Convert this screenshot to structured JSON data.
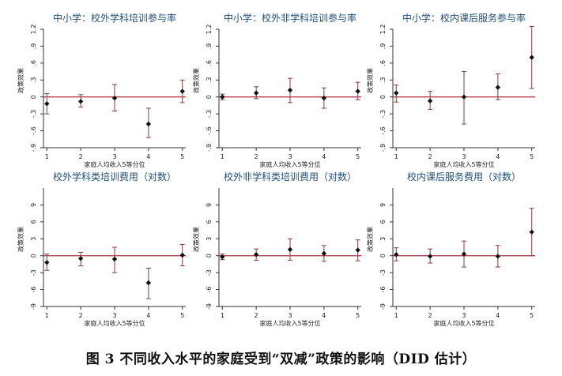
{
  "figure": {
    "caption": "图 3 不同收入水平的家庭受到“双减”政策的影响（DID 估计）"
  },
  "colors": {
    "zero_line": "#a8323e",
    "error_bar": "#8a3a3a",
    "point": "#111111",
    "title": "#1f4e79",
    "axis": "#333333"
  },
  "chart_data": [
    {
      "type": "scatter",
      "title": "中小学：校外学科培训参与率",
      "ylabel": "政策效果",
      "xlabel": "家庭人均收入5等分位",
      "x": [
        1,
        2,
        3,
        4,
        5
      ],
      "ylim": [
        -0.9,
        1.2
      ],
      "yticks": [
        1.2,
        0.9,
        0.6,
        0.3,
        0,
        -0.3,
        -0.6,
        -0.9
      ],
      "ytick_labels": [
        "1.2",
        ".9",
        ".6",
        ".3",
        "0",
        "-.3",
        "-.6",
        "-.9"
      ],
      "estimate": [
        -0.12,
        -0.08,
        -0.02,
        -0.48,
        0.1
      ],
      "ci_low": [
        -0.3,
        -0.18,
        -0.25,
        -0.72,
        -0.1
      ],
      "ci_high": [
        0.06,
        0.04,
        0.22,
        -0.2,
        0.3
      ]
    },
    {
      "type": "scatter",
      "title": "中小学：校外非学科培训参与率",
      "ylabel": "政策效果",
      "xlabel": "家庭人均收入5等分位",
      "x": [
        1,
        2,
        3,
        4,
        5
      ],
      "ylim": [
        -0.9,
        1.2
      ],
      "yticks": [
        1.2,
        0.9,
        0.6,
        0.3,
        0,
        -0.3,
        -0.6,
        -0.9
      ],
      "ytick_labels": [
        "1.2",
        ".9",
        ".6",
        ".3",
        "0",
        "-.3",
        "-.6",
        "-.9"
      ],
      "estimate": [
        0,
        0.07,
        0.12,
        -0.02,
        0.1
      ],
      "ci_low": [
        -0.05,
        -0.03,
        -0.1,
        -0.2,
        -0.05
      ],
      "ci_high": [
        0.05,
        0.18,
        0.33,
        0.16,
        0.26
      ]
    },
    {
      "type": "scatter",
      "title": "中小学：校内课后服务参与率",
      "ylabel": "政策效果",
      "xlabel": "家庭人均收入5等分位",
      "x": [
        1,
        2,
        3,
        4,
        5
      ],
      "ylim": [
        -0.9,
        1.2
      ],
      "yticks": [
        1.2,
        0.9,
        0.6,
        0.3,
        0,
        -0.3,
        -0.6,
        -0.9
      ],
      "ytick_labels": [
        "1.2",
        ".9",
        ".6",
        ".3",
        "0",
        "-.3",
        "-.6",
        "-.9"
      ],
      "estimate": [
        0.07,
        -0.07,
        0,
        0.17,
        0.7
      ],
      "ci_low": [
        -0.09,
        -0.22,
        -0.48,
        -0.05,
        0.15
      ],
      "ci_high": [
        0.21,
        0.1,
        0.45,
        0.41,
        1.25
      ]
    },
    {
      "type": "scatter",
      "title": "校外学科类培训费用（对数）",
      "ylabel": "政策效果",
      "xlabel": "家庭人均收入5等分位",
      "x": [
        1,
        2,
        3,
        4,
        5
      ],
      "ylim": [
        -9,
        12
      ],
      "yticks": [
        9,
        6,
        3,
        0,
        -3,
        -6,
        -9
      ],
      "ytick_labels": [
        "9",
        "6",
        "3",
        "0",
        "-3",
        "-6",
        "-9"
      ],
      "estimate": [
        -1.2,
        -0.5,
        -0.6,
        -4.8,
        0.1
      ],
      "ci_low": [
        -2.6,
        -1.8,
        -3.0,
        -7.6,
        -1.8
      ],
      "ci_high": [
        0.3,
        0.6,
        1.5,
        -2.2,
        2.0
      ]
    },
    {
      "type": "scatter",
      "title": "校外非学科类培训费用（对数）",
      "ylabel": "政策效果",
      "xlabel": "家庭人均收入5等分位",
      "x": [
        1,
        2,
        3,
        4,
        5
      ],
      "ylim": [
        -9,
        12
      ],
      "yticks": [
        9,
        6,
        3,
        0,
        -3,
        -6,
        -9
      ],
      "ytick_labels": [
        "9",
        "6",
        "3",
        "0",
        "-3",
        "-6",
        "-9"
      ],
      "estimate": [
        -0.2,
        0.2,
        1.1,
        0.4,
        1.0
      ],
      "ci_low": [
        -0.7,
        -0.8,
        -0.8,
        -1.0,
        -0.9
      ],
      "ci_high": [
        0.3,
        1.2,
        3.0,
        1.8,
        2.8
      ]
    },
    {
      "type": "scatter",
      "title": "校内课后服务费用（对数）",
      "ylabel": "政策效果",
      "xlabel": "家庭人均收入5等分位",
      "x": [
        1,
        2,
        3,
        4,
        5
      ],
      "ylim": [
        -9,
        12
      ],
      "yticks": [
        9,
        6,
        3,
        0,
        -3,
        -6,
        -9
      ],
      "ytick_labels": [
        "9",
        "6",
        "3",
        "0",
        "-3",
        "-6",
        "-9"
      ],
      "estimate": [
        0.2,
        -0.1,
        0.3,
        -0.1,
        4.2
      ],
      "ci_low": [
        -0.9,
        -1.3,
        -2.0,
        -2.0,
        0.0
      ],
      "ci_high": [
        1.4,
        1.2,
        2.6,
        1.8,
        8.4
      ]
    }
  ]
}
